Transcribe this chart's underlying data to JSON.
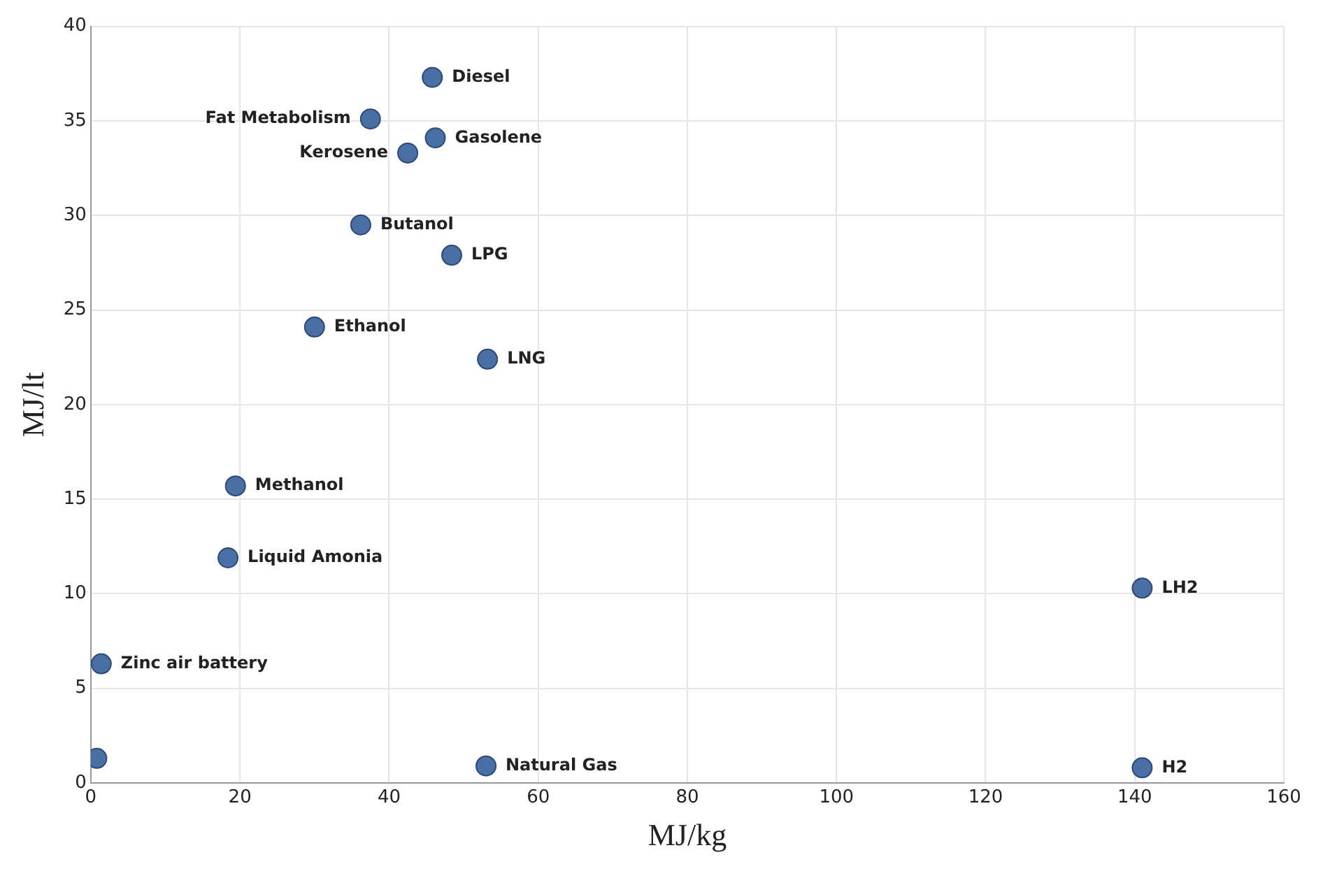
{
  "chart_data": {
    "type": "scatter",
    "xlabel": "MJ/kg",
    "ylabel": "MJ/lt",
    "series": [
      {
        "color": "#4a6fa5",
        "x": [
          45.8,
          37.5,
          46.2,
          42.5,
          36.2,
          48.4,
          30,
          53.2,
          19.4,
          18.4,
          1.4,
          0.8,
          53,
          141,
          141
        ],
        "values": [
          37.3,
          35.1,
          34.1,
          33.3,
          29.5,
          27.9,
          24.1,
          22.4,
          15.7,
          11.9,
          6.3,
          1.3,
          0.9,
          10.3,
          0.8
        ]
      }
    ],
    "annotations": [
      {
        "text": "Diesel",
        "x": 45.8,
        "y": 37.3
      },
      {
        "text": "Fat Metabolism",
        "x": 37.5,
        "y": 35.1
      },
      {
        "text": "Gasolene",
        "x": 46.2,
        "y": 34.1
      },
      {
        "text": "Kerosene",
        "x": 42.5,
        "y": 33.3
      },
      {
        "text": "Butanol",
        "x": 36.2,
        "y": 29.5
      },
      {
        "text": "LPG",
        "x": 48.4,
        "y": 27.9
      },
      {
        "text": "Ethanol",
        "x": 30,
        "y": 24.1
      },
      {
        "text": "LNG",
        "x": 53.2,
        "y": 22.4
      },
      {
        "text": "Methanol",
        "x": 19.4,
        "y": 15.7
      },
      {
        "text": "Liquid Amonia",
        "x": 18.4,
        "y": 11.9
      },
      {
        "text": "Zinc air battery",
        "x": 1.4,
        "y": 6.3
      },
      {
        "text": "Natural Gas",
        "x": 53,
        "y": 0.9
      },
      {
        "text": "LH2",
        "x": 141,
        "y": 10.3
      },
      {
        "text": "H2",
        "x": 141,
        "y": 0.8
      }
    ],
    "xlim": [
      0,
      160
    ],
    "xticks": [
      0,
      20,
      40,
      60,
      80,
      100,
      120,
      140,
      160
    ],
    "ylim": [
      0,
      40
    ],
    "yticks": [
      0,
      5,
      10,
      15,
      20,
      25,
      30,
      35,
      40
    ],
    "grid": true,
    "legend": false,
    "marker": "circle"
  }
}
